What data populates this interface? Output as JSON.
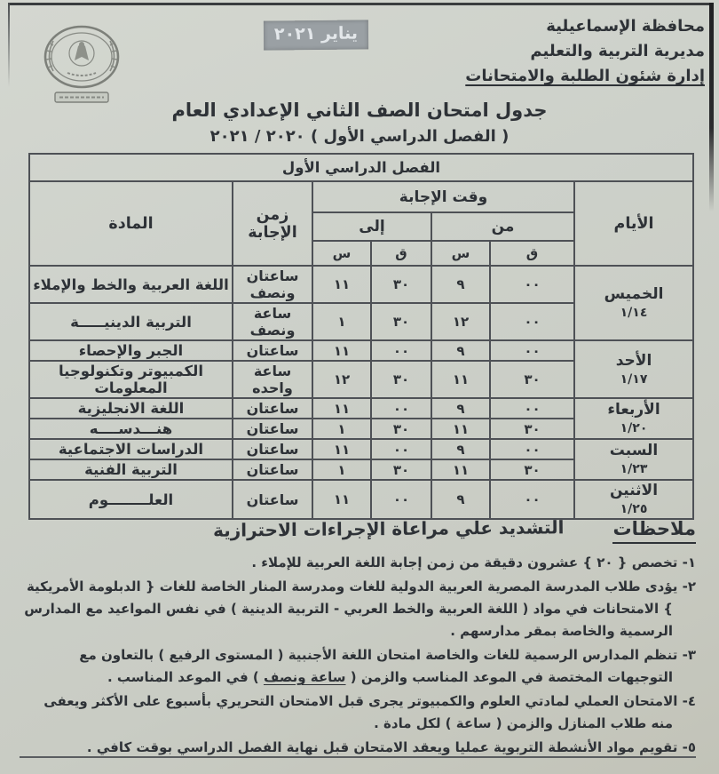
{
  "header": {
    "org_lines": [
      "محافظة الإسماعيلية",
      "مديرية التربية والتعليم",
      "إدارة شئون الطلبة والامتحانات"
    ],
    "date_stamp": "يناير ٢٠٢١",
    "logo": "egypt-eagle-emblem"
  },
  "title": {
    "line1": "جدول امتحان الصف الثاني الإعدادي العام",
    "line2_label": "( الفصل الدراسي الأول )",
    "line2_years": "٢٠٢١ / ٢٠٢٠"
  },
  "table": {
    "banner": "الفصل الدراسي الأول",
    "headers": {
      "days": "الأيام",
      "answer_time": "وقت الإجابة",
      "from": "من",
      "to": "إلى",
      "minutes": "ق",
      "hours": "س",
      "duration": "زمن الإجابة",
      "subject": "المادة"
    },
    "days": [
      {
        "name": "الخميس",
        "date": "١/١٤",
        "rows": [
          {
            "from_min": "٠٠",
            "from_hr": "٩",
            "to_min": "٣٠",
            "to_hr": "١١",
            "duration": "ساعتان ونصف",
            "subject": "اللغة العربية والخط والإملاء"
          },
          {
            "from_min": "٠٠",
            "from_hr": "١٢",
            "to_min": "٣٠",
            "to_hr": "١",
            "duration": "ساعة ونصف",
            "subject": "التربية الدينيـــــة"
          }
        ]
      },
      {
        "name": "الأحد",
        "date": "١/١٧",
        "rows": [
          {
            "from_min": "٠٠",
            "from_hr": "٩",
            "to_min": "٠٠",
            "to_hr": "١١",
            "duration": "ساعتان",
            "subject": "الجبر والإحصاء"
          },
          {
            "from_min": "٣٠",
            "from_hr": "١١",
            "to_min": "٣٠",
            "to_hr": "١٢",
            "duration": "ساعة واحده",
            "subject": "الكمبيوتر وتكنولوجيا المعلومات"
          }
        ]
      },
      {
        "name": "الأربعاء",
        "date": "١/٢٠",
        "rows": [
          {
            "from_min": "٠٠",
            "from_hr": "٩",
            "to_min": "٠٠",
            "to_hr": "١١",
            "duration": "ساعتان",
            "subject": "اللغة الانجليزية"
          },
          {
            "from_min": "٣٠",
            "from_hr": "١١",
            "to_min": "٣٠",
            "to_hr": "١",
            "duration": "ساعتان",
            "subject": "هنـــدســــه"
          }
        ]
      },
      {
        "name": "السبت",
        "date": "١/٢٣",
        "rows": [
          {
            "from_min": "٠٠",
            "from_hr": "٩",
            "to_min": "٠٠",
            "to_hr": "١١",
            "duration": "ساعتان",
            "subject": "الدراسات الاجتماعية"
          },
          {
            "from_min": "٣٠",
            "from_hr": "١١",
            "to_min": "٣٠",
            "to_hr": "١",
            "duration": "ساعتان",
            "subject": "التربية الفنية"
          }
        ]
      },
      {
        "name": "الاثنين",
        "date": "١/٢٥",
        "rows": [
          {
            "from_min": "٠٠",
            "from_hr": "٩",
            "to_min": "٠٠",
            "to_hr": "١١",
            "duration": "ساعتان",
            "subject": "العلــــــــوم"
          }
        ]
      }
    ]
  },
  "notes": {
    "heading": "ملاحظات",
    "emphasis": "التشديد علي مراعاة الإجراءات الاحترازية",
    "underline_phrase": "ساعة ونصف",
    "items": [
      "١- تخصص { ٢٠ } عشرون دقيقة من زمن إجابة اللغة العربية للإملاء .",
      "٢- يؤدى طلاب المدرسة المصرية العربية الدولية للغات ومدرسة المنار الخاصة للغات { الدبلومة الأمريكية } الامتحانات في مواد ( اللغة العربية والخط العربي - التربية الدينية ) في نفس المواعيد مع المدارس الرسمية والخاصة بمقر مدارسهم .",
      "٣- تنظم المدارس الرسمية للغات والخاصة امتحان اللغة الأجنبية ( المستوى الرفيع ) بالتعاون مع التوجيهات المختصة في الموعد المناسب والزمن ( ساعة ونصف ) في الموعد المناسب .",
      "٤- الامتحان العملي لمادتي العلوم والكمبيوتر يجرى قبل الامتحان التحريري بأسبوع على الأكثر ويعفى منه طلاب المنازل والزمن ( ساعة ) لكل مادة .",
      "٥- تقويم مواد الأنشطة التربوية عمليا ويعقد الامتحان قبل نهاية الفصل الدراسي بوقت كافي ."
    ]
  }
}
